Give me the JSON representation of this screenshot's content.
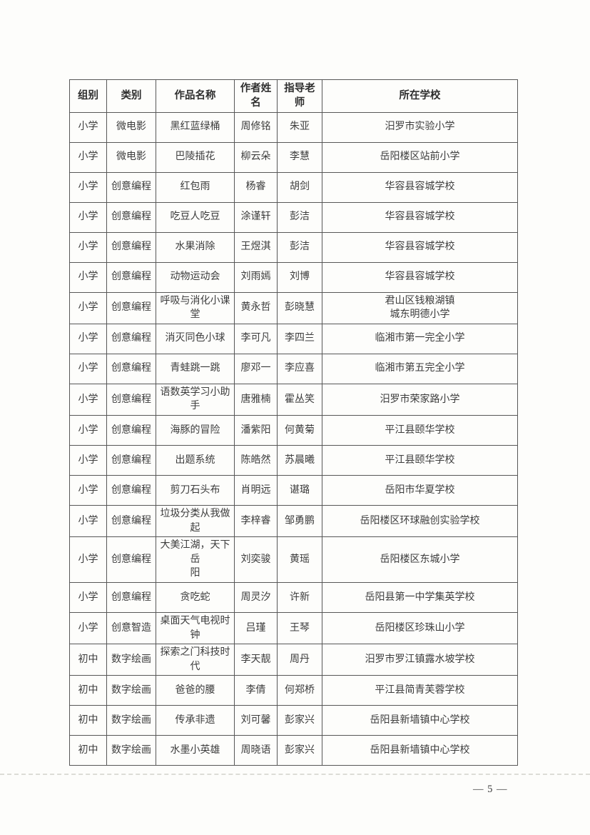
{
  "page": {
    "number": "— 5 —"
  },
  "table": {
    "headers": [
      "组别",
      "类别",
      "作品名称",
      "作者姓名",
      "指导老师",
      "所在学校"
    ],
    "rows": [
      [
        "小学",
        "微电影",
        "黑红蓝绿桶",
        "周修铭",
        "朱亚",
        "汨罗市实验小学"
      ],
      [
        "小学",
        "微电影",
        "巴陵插花",
        "柳云朵",
        "李慧",
        "岳阳楼区站前小学"
      ],
      [
        "小学",
        "创意编程",
        "红包雨",
        "杨睿",
        "胡剑",
        "华容县容城学校"
      ],
      [
        "小学",
        "创意编程",
        "吃豆人吃豆",
        "涂谨轩",
        "彭洁",
        "华容县容城学校"
      ],
      [
        "小学",
        "创意编程",
        "水果消除",
        "王煜淇",
        "彭洁",
        "华容县容城学校"
      ],
      [
        "小学",
        "创意编程",
        "动物运动会",
        "刘雨嫣",
        "刘博",
        "华容县容城学校"
      ],
      [
        "小学",
        "创意编程",
        "呼吸与消化小课堂",
        "黄永哲",
        "彭晓慧",
        "君山区钱粮湖镇\n城东明德小学"
      ],
      [
        "小学",
        "创意编程",
        "消灭同色小球",
        "李可凡",
        "李四兰",
        "临湘市第一完全小学"
      ],
      [
        "小学",
        "创意编程",
        "青蛙跳一跳",
        "廖邓一",
        "李应喜",
        "临湘市第五完全小学"
      ],
      [
        "小学",
        "创意编程",
        "语数英学习小助手",
        "唐雅楠",
        "霍丛笑",
        "汨罗市荣家路小学"
      ],
      [
        "小学",
        "创意编程",
        "海豚的冒险",
        "潘紫阳",
        "何黄菊",
        "平江县颐华学校"
      ],
      [
        "小学",
        "创意编程",
        "出题系统",
        "陈皓然",
        "苏晨曦",
        "平江县颐华学校"
      ],
      [
        "小学",
        "创意编程",
        "剪刀石头布",
        "肖明远",
        "谌璐",
        "岳阳市华夏学校"
      ],
      [
        "小学",
        "创意编程",
        "垃圾分类从我做起",
        "李梓睿",
        "邹勇鹏",
        "岳阳楼区环球融创实验学校"
      ],
      [
        "小学",
        "创意编程",
        "大美江湖，天下岳\n阳",
        "刘奕骏",
        "黄瑶",
        "岳阳楼区东城小学"
      ],
      [
        "小学",
        "创意编程",
        "贪吃蛇",
        "周灵汐",
        "许新",
        "岳阳县第一中学集英学校"
      ],
      [
        "小学",
        "创意智造",
        "桌面天气电视时钟",
        "吕瑾",
        "王琴",
        "岳阳楼区珍珠山小学"
      ],
      [
        "初中",
        "数字绘画",
        "探索之门科技时代",
        "李天靓",
        "周丹",
        "汨罗市罗江镇露水坡学校"
      ],
      [
        "初中",
        "数字绘画",
        "爸爸的腰",
        "李倩",
        "何郑桥",
        "平江县简青芙蓉学校"
      ],
      [
        "初中",
        "数字绘画",
        "传承非遗",
        "刘可馨",
        "彭家兴",
        "岳阳县新墙镇中心学校"
      ],
      [
        "初中",
        "数字绘画",
        "水墨小英雄",
        "周晓语",
        "彭家兴",
        "岳阳县新墙镇中心学校"
      ]
    ]
  }
}
